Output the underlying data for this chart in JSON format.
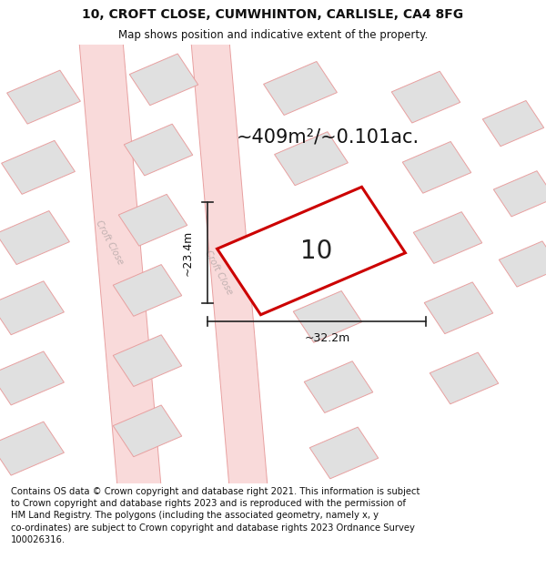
{
  "title": "10, CROFT CLOSE, CUMWHINTON, CARLISLE, CA4 8FG",
  "subtitle": "Map shows position and indicative extent of the property.",
  "title_fontsize": 10,
  "subtitle_fontsize": 8.5,
  "bg_color": "#ffffff",
  "footer_text": "Contains OS data © Crown copyright and database right 2021. This information is subject to Crown copyright and database rights 2023 and is reproduced with the permission of HM Land Registry. The polygons (including the associated geometry, namely x, y co-ordinates) are subject to Crown copyright and database rights 2023 Ordnance Survey 100026316.",
  "footer_fontsize": 7.2,
  "area_label": "~409m²/~0.101ac.",
  "area_fontsize": 15,
  "plot_number": "10",
  "plot_fontsize": 20,
  "dim_h": "~23.4m",
  "dim_w": "~32.2m",
  "dim_fontsize": 9,
  "road_fill": "#f9dada",
  "road_edge": "#e8a0a0",
  "road_lw": 0.7,
  "building_fill": "#e0e0e0",
  "building_edge": "#e8a0a0",
  "building_lw": 0.7,
  "plot_color": "#cc0000",
  "plot_lw": 2.2,
  "map_bg": "#f5f5f5",
  "road_label_color": "#c0b0b0",
  "road_label_fontsize": 7
}
